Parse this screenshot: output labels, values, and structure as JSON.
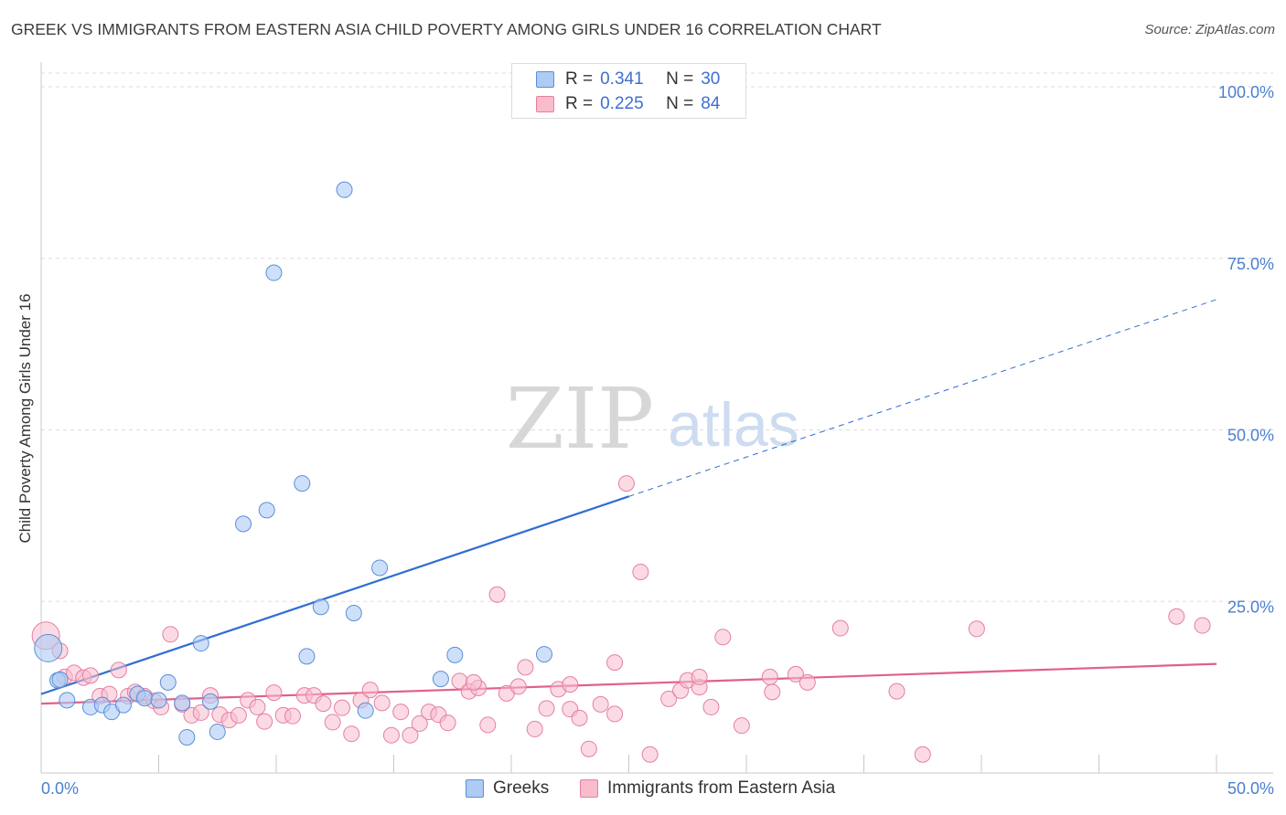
{
  "title": "GREEK VS IMMIGRANTS FROM EASTERN ASIA CHILD POVERTY AMONG GIRLS UNDER 16 CORRELATION CHART",
  "source": "Source: ZipAtlas.com",
  "watermark": {
    "zip": "ZIP",
    "atlas": "atlas"
  },
  "stats": {
    "greeks": {
      "r_label": "R =",
      "r_value": "0.341",
      "n_label": "N =",
      "n_value": "30"
    },
    "immigrants": {
      "r_label": "R =",
      "r_value": "0.225",
      "n_label": "N =",
      "n_value": "84"
    }
  },
  "legend": {
    "greeks": "Greeks",
    "immigrants": "Immigrants from Eastern Asia"
  },
  "colors": {
    "greeks_fill": "#aecbf5",
    "greeks_stroke": "#5a8fd8",
    "greeks_line": "#2f6fd1",
    "immigrants_fill": "#f8bccd",
    "immigrants_stroke": "#e57fa2",
    "immigrants_line": "#e0608d",
    "tick_label": "#4a7fd0",
    "grid": "#dddddd"
  },
  "chart_data": {
    "type": "scatter",
    "title": "GREEK VS IMMIGRANTS FROM EASTERN ASIA CHILD POVERTY AMONG GIRLS UNDER 16 CORRELATION CHART",
    "xlabel": "",
    "ylabel": "Child Poverty Among Girls Under 16",
    "xlim": [
      0,
      50
    ],
    "ylim": [
      0,
      102
    ],
    "x_tick_labels": {
      "min": "0.0%",
      "max": "50.0%"
    },
    "y_ticks": [
      25,
      50,
      75,
      100
    ],
    "y_tick_labels": [
      "25.0%",
      "50.0%",
      "75.0%",
      "100.0%"
    ],
    "grid": true,
    "series": [
      {
        "name": "Greeks",
        "R": 0.341,
        "N": 30,
        "trend": {
          "x0": 0,
          "y0": 11.5,
          "x1": 25,
          "y1": 40.3,
          "dashed_to_x": 50,
          "dashed_to_y": 69.0
        },
        "points": [
          {
            "x": 0.3,
            "y": 18.2,
            "big": true
          },
          {
            "x": 0.7,
            "y": 13.5
          },
          {
            "x": 1.1,
            "y": 10.6
          },
          {
            "x": 2.1,
            "y": 9.6
          },
          {
            "x": 2.6,
            "y": 9.9
          },
          {
            "x": 3.0,
            "y": 8.9
          },
          {
            "x": 3.5,
            "y": 9.9
          },
          {
            "x": 4.1,
            "y": 11.5
          },
          {
            "x": 4.4,
            "y": 10.9
          },
          {
            "x": 5.0,
            "y": 10.6
          },
          {
            "x": 5.4,
            "y": 13.2
          },
          {
            "x": 6.0,
            "y": 10.2
          },
          {
            "x": 6.2,
            "y": 5.2
          },
          {
            "x": 6.8,
            "y": 18.9
          },
          {
            "x": 7.2,
            "y": 10.4
          },
          {
            "x": 7.5,
            "y": 6.0
          },
          {
            "x": 8.6,
            "y": 36.3
          },
          {
            "x": 9.6,
            "y": 38.3
          },
          {
            "x": 9.9,
            "y": 72.9
          },
          {
            "x": 11.1,
            "y": 42.2
          },
          {
            "x": 11.3,
            "y": 17.0
          },
          {
            "x": 11.9,
            "y": 24.2
          },
          {
            "x": 12.9,
            "y": 85.0
          },
          {
            "x": 13.3,
            "y": 23.3
          },
          {
            "x": 13.8,
            "y": 9.1
          },
          {
            "x": 14.4,
            "y": 29.9
          },
          {
            "x": 17.0,
            "y": 13.7
          },
          {
            "x": 17.6,
            "y": 17.2
          },
          {
            "x": 21.4,
            "y": 17.3
          },
          {
            "x": 0.8,
            "y": 13.6
          }
        ]
      },
      {
        "name": "Immigrants from Eastern Asia",
        "R": 0.225,
        "N": 84,
        "trend": {
          "x0": 0,
          "y0": 10.1,
          "x1": 50,
          "y1": 15.9
        },
        "points": [
          {
            "x": 0.2,
            "y": 20.0,
            "big": true
          },
          {
            "x": 0.8,
            "y": 17.8
          },
          {
            "x": 1.0,
            "y": 14.0
          },
          {
            "x": 1.4,
            "y": 14.6
          },
          {
            "x": 1.8,
            "y": 13.9
          },
          {
            "x": 2.1,
            "y": 14.2
          },
          {
            "x": 2.5,
            "y": 11.2
          },
          {
            "x": 2.9,
            "y": 11.5
          },
          {
            "x": 3.3,
            "y": 15.0
          },
          {
            "x": 3.7,
            "y": 11.2
          },
          {
            "x": 4.0,
            "y": 11.8
          },
          {
            "x": 4.4,
            "y": 11.2
          },
          {
            "x": 4.8,
            "y": 10.5
          },
          {
            "x": 5.1,
            "y": 9.6
          },
          {
            "x": 5.5,
            "y": 20.2
          },
          {
            "x": 6.0,
            "y": 10.0
          },
          {
            "x": 6.4,
            "y": 8.4
          },
          {
            "x": 6.8,
            "y": 8.8
          },
          {
            "x": 7.2,
            "y": 11.3
          },
          {
            "x": 7.6,
            "y": 8.5
          },
          {
            "x": 8.0,
            "y": 7.7
          },
          {
            "x": 8.4,
            "y": 8.4
          },
          {
            "x": 8.8,
            "y": 10.6
          },
          {
            "x": 9.2,
            "y": 9.6
          },
          {
            "x": 9.5,
            "y": 7.5
          },
          {
            "x": 9.9,
            "y": 11.7
          },
          {
            "x": 10.3,
            "y": 8.4
          },
          {
            "x": 10.7,
            "y": 8.3
          },
          {
            "x": 11.2,
            "y": 11.3
          },
          {
            "x": 11.6,
            "y": 11.3
          },
          {
            "x": 12.0,
            "y": 10.1
          },
          {
            "x": 12.4,
            "y": 7.4
          },
          {
            "x": 12.8,
            "y": 9.5
          },
          {
            "x": 13.2,
            "y": 5.7
          },
          {
            "x": 13.6,
            "y": 10.6
          },
          {
            "x": 14.0,
            "y": 12.1
          },
          {
            "x": 14.5,
            "y": 10.2
          },
          {
            "x": 14.9,
            "y": 5.5
          },
          {
            "x": 15.3,
            "y": 8.9
          },
          {
            "x": 15.7,
            "y": 5.5
          },
          {
            "x": 16.1,
            "y": 7.2
          },
          {
            "x": 16.5,
            "y": 8.9
          },
          {
            "x": 16.9,
            "y": 8.5
          },
          {
            "x": 17.3,
            "y": 7.3
          },
          {
            "x": 17.8,
            "y": 13.4
          },
          {
            "x": 18.2,
            "y": 11.9
          },
          {
            "x": 18.6,
            "y": 12.4
          },
          {
            "x": 19.0,
            "y": 7.0
          },
          {
            "x": 19.4,
            "y": 26.0
          },
          {
            "x": 19.8,
            "y": 11.6
          },
          {
            "x": 20.3,
            "y": 12.6
          },
          {
            "x": 20.6,
            "y": 15.4
          },
          {
            "x": 21.0,
            "y": 6.4
          },
          {
            "x": 21.5,
            "y": 9.4
          },
          {
            "x": 22.0,
            "y": 12.2
          },
          {
            "x": 22.5,
            "y": 9.3
          },
          {
            "x": 22.9,
            "y": 8.0
          },
          {
            "x": 23.3,
            "y": 3.5
          },
          {
            "x": 23.8,
            "y": 10.0
          },
          {
            "x": 24.4,
            "y": 16.1
          },
          {
            "x": 24.9,
            "y": 42.2
          },
          {
            "x": 25.5,
            "y": 29.3
          },
          {
            "x": 25.9,
            "y": 2.7
          },
          {
            "x": 26.7,
            "y": 10.8
          },
          {
            "x": 27.2,
            "y": 12.0
          },
          {
            "x": 27.5,
            "y": 13.5
          },
          {
            "x": 28.0,
            "y": 12.5
          },
          {
            "x": 28.5,
            "y": 9.6
          },
          {
            "x": 29.0,
            "y": 19.8
          },
          {
            "x": 29.8,
            "y": 6.9
          },
          {
            "x": 31.0,
            "y": 14.0
          },
          {
            "x": 32.1,
            "y": 14.4
          },
          {
            "x": 32.6,
            "y": 13.2
          },
          {
            "x": 34.0,
            "y": 21.1
          },
          {
            "x": 36.4,
            "y": 11.9
          },
          {
            "x": 37.5,
            "y": 2.7
          },
          {
            "x": 39.8,
            "y": 21.0
          },
          {
            "x": 48.3,
            "y": 22.8
          },
          {
            "x": 49.4,
            "y": 21.5
          },
          {
            "x": 24.4,
            "y": 8.6
          },
          {
            "x": 31.1,
            "y": 11.8
          },
          {
            "x": 28.0,
            "y": 14.0
          },
          {
            "x": 18.4,
            "y": 13.2
          },
          {
            "x": 22.5,
            "y": 12.9
          }
        ]
      }
    ]
  }
}
